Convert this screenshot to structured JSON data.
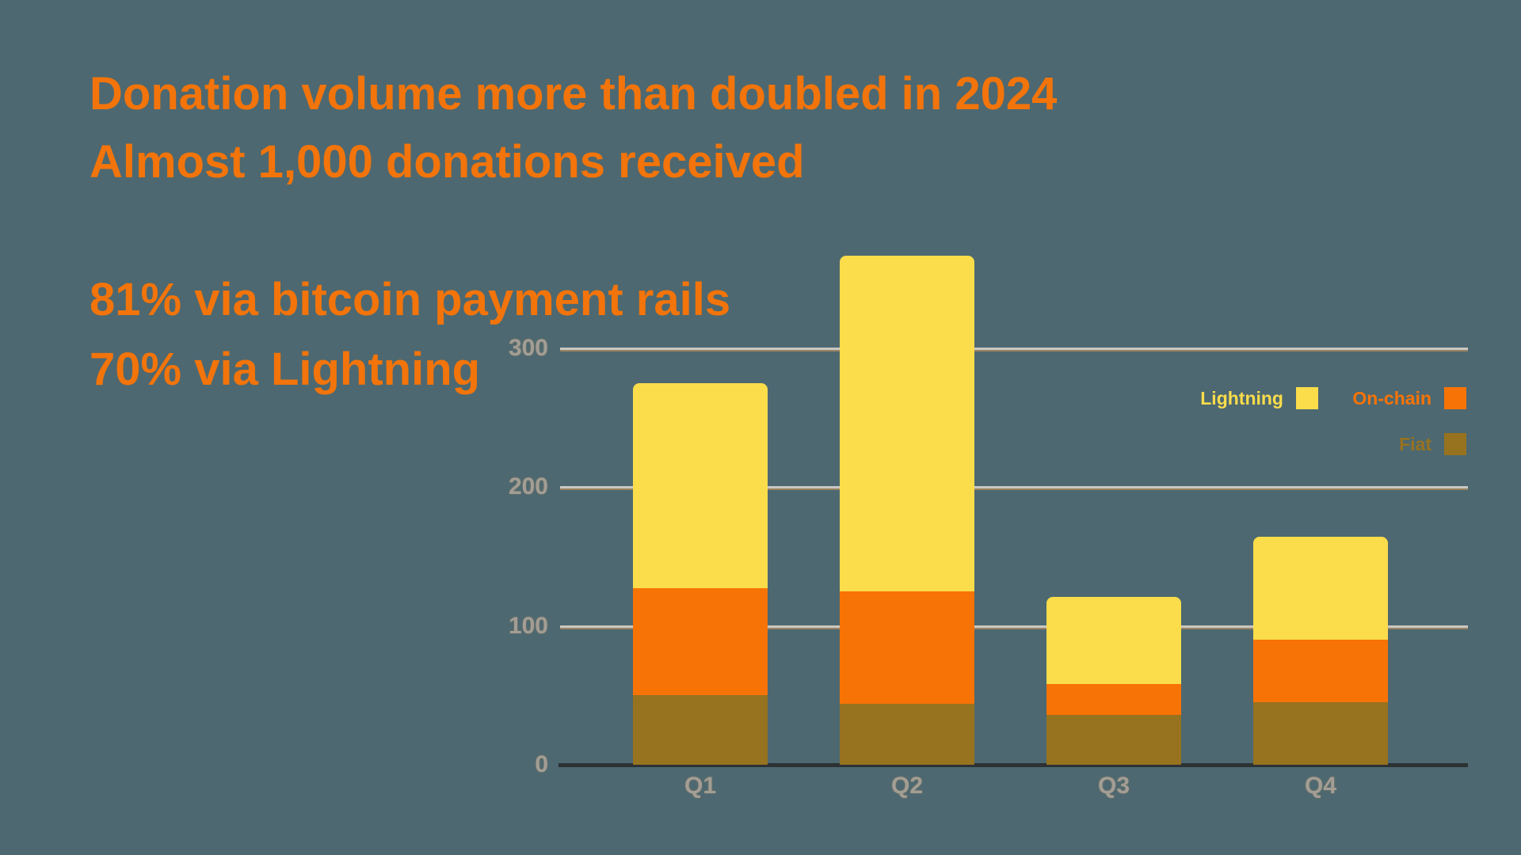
{
  "headline": {
    "line1": "Donation volume more than doubled in 2024",
    "line2": "Almost 1,000 donations received"
  },
  "stats": {
    "line1": "81% via bitcoin payment rails",
    "line2": "70% via Lightning"
  },
  "colors": {
    "background": "#4D6870",
    "accent_orange": "#F2740B",
    "lightning_yellow": "#FBDC4B",
    "onchain_orange": "#F87306",
    "fiat_brown": "#97721F",
    "gridline": "#C9C7C3",
    "axis": "#2C3134",
    "tick_label": "#A39D94"
  },
  "chart_data": {
    "type": "bar",
    "stacked": true,
    "title": "",
    "xlabel": "",
    "ylabel": "",
    "categories": [
      "Q1",
      "Q2",
      "Q3",
      "Q4"
    ],
    "series": [
      {
        "name": "Fiat",
        "color": "#97721F",
        "values": [
          50,
          44,
          36,
          45
        ]
      },
      {
        "name": "On-chain",
        "color": "#F87306",
        "values": [
          77,
          81,
          22,
          45
        ]
      },
      {
        "name": "Lightning",
        "color": "#FBDC4B",
        "values": [
          148,
          242,
          63,
          74
        ]
      }
    ],
    "totals": [
      275,
      367,
      121,
      164
    ],
    "ylim": [
      0,
      300
    ],
    "yticks": [
      0,
      100,
      200,
      300
    ],
    "grid": true,
    "legend_position": "right"
  },
  "legend": {
    "items": [
      {
        "label": "Lightning",
        "color": "#FBDC4B"
      },
      {
        "label": "On-chain",
        "color": "#F87306"
      },
      {
        "label": "Fiat",
        "color": "#97721F"
      }
    ]
  }
}
